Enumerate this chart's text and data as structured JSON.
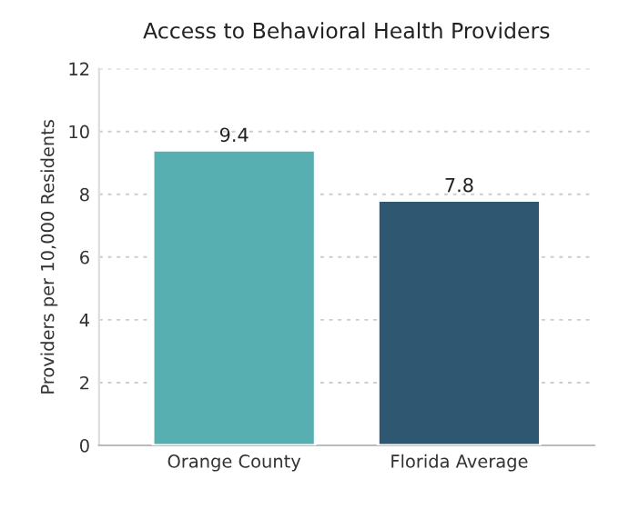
{
  "chart_data": {
    "type": "bar",
    "title": "Access to Behavioral Health Providers",
    "ylabel": "Providers per 10,000 Residents",
    "categories": [
      "Orange County",
      "Florida Average"
    ],
    "values": [
      9.4,
      7.8
    ],
    "colors": [
      "#48bdc1",
      "#235a7d"
    ],
    "ylim": [
      0,
      12
    ],
    "yticks": [
      0,
      2,
      4,
      6,
      8,
      10,
      12
    ],
    "grid": "y",
    "data_labels": true
  }
}
